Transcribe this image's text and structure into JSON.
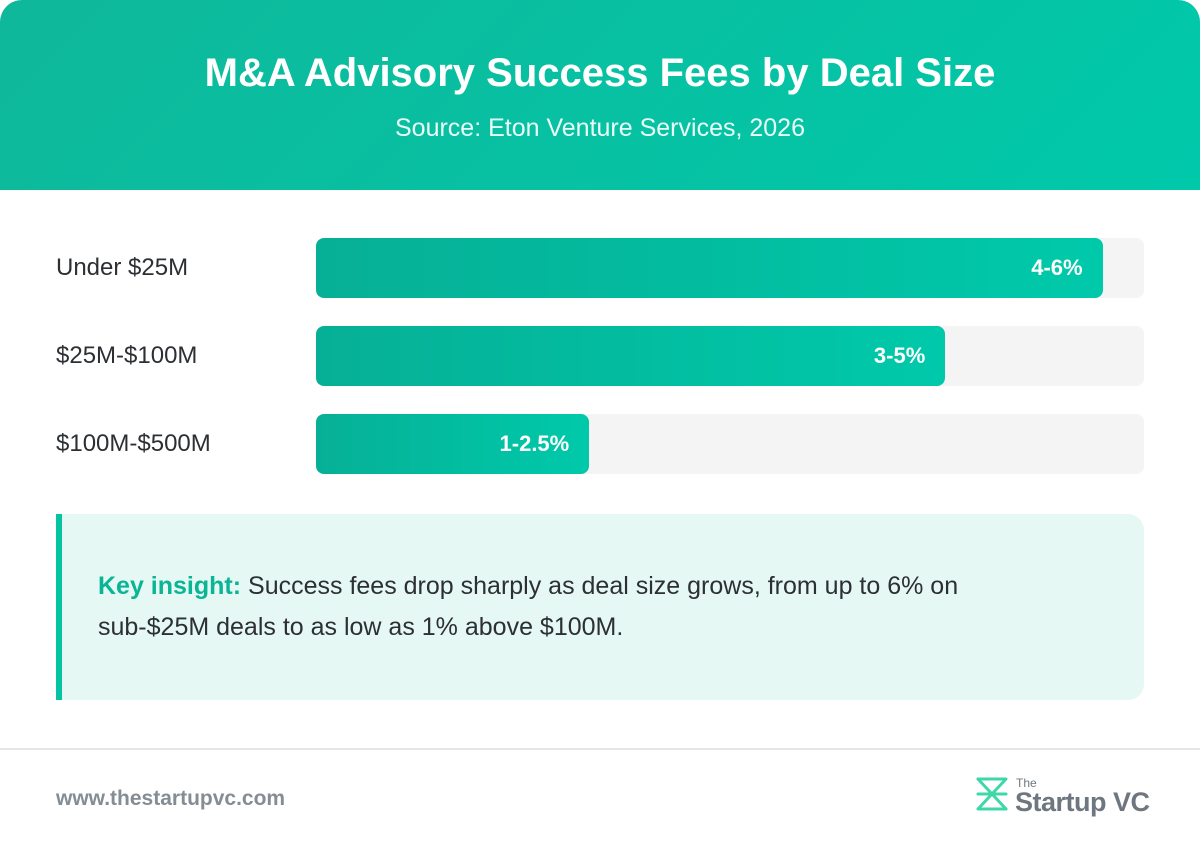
{
  "header": {
    "title": "M&A Advisory Success Fees by Deal Size",
    "subtitle": "Source: Eton Venture Services, 2026"
  },
  "chart_data": {
    "type": "bar",
    "orientation": "horizontal",
    "title": "M&A Advisory Success Fees by Deal Size",
    "categories": [
      "Under $25M",
      "$25M-$100M",
      "$100M-$500M"
    ],
    "value_labels": [
      "4-6%",
      "3-5%",
      "1-2.5%"
    ],
    "ranges": [
      [
        4,
        6
      ],
      [
        3,
        5
      ],
      [
        1,
        2.5
      ]
    ],
    "bar_fill_fraction": [
      0.95,
      0.76,
      0.33
    ],
    "colors": {
      "bar": "#00c9aa",
      "track": "#f4f4f4"
    }
  },
  "insight": {
    "label": "Key insight:",
    "text": " Success fees drop sharply as deal size grows, from up to 6% on sub-$25M deals to as low as 1% above $100M."
  },
  "footer": {
    "url": "www.thestartupvc.com",
    "logo_small": "The",
    "logo_brand": "Startup VC"
  },
  "colors": {
    "accent": "#00c9aa",
    "accent_dark": "#0ab596",
    "insight_bg": "#e5f8f4"
  },
  "icons": {
    "logo": "startupvc-logo-icon"
  }
}
